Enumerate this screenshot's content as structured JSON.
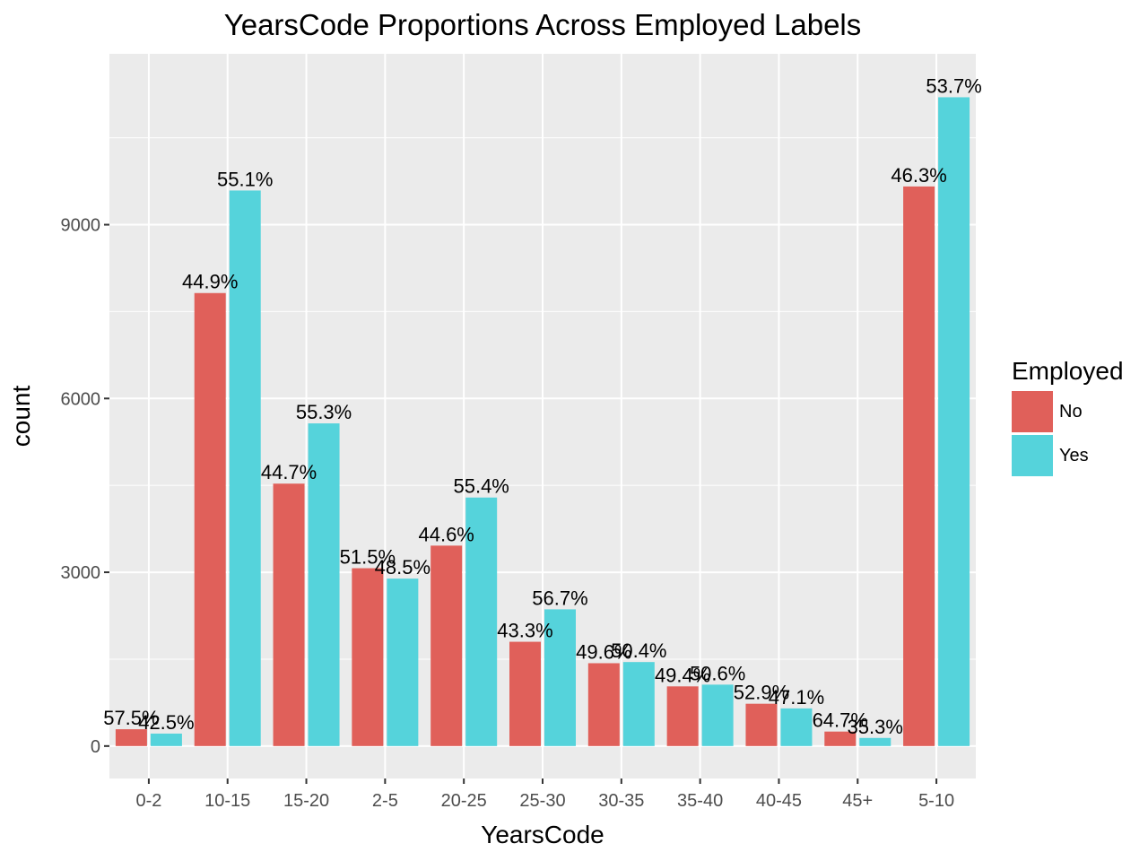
{
  "chart_data": {
    "type": "bar",
    "title": "YearsCode Proportions Across Employed Labels",
    "xlabel": "YearsCode",
    "ylabel": "count",
    "categories": [
      "0-2",
      "10-15",
      "15-20",
      "2-5",
      "20-25",
      "25-30",
      "30-35",
      "35-40",
      "40-45",
      "45+",
      "5-10"
    ],
    "ylim": [
      -560,
      11950
    ],
    "yticks": [
      0,
      3000,
      6000,
      9000
    ],
    "ytick_labels": [
      "0",
      "3000",
      "6000",
      "9000"
    ],
    "grid": true,
    "legend": {
      "title": "Employed",
      "position": "right"
    },
    "series": [
      {
        "name": "No",
        "color": "#e0605a",
        "values": [
          290,
          7820,
          4530,
          3070,
          3460,
          1800,
          1430,
          1030,
          730,
          250,
          9660
        ],
        "labels": [
          "57.5%",
          "44.9%",
          "44.7%",
          "51.5%",
          "44.6%",
          "43.3%",
          "49.6%",
          "49.4%",
          "52.9%",
          "64.7%",
          "46.3%"
        ]
      },
      {
        "name": "Yes",
        "color": "#55d3db",
        "values": [
          215,
          9590,
          5570,
          2890,
          4290,
          2360,
          1450,
          1060,
          650,
          140,
          11200
        ],
        "labels": [
          "42.5%",
          "55.1%",
          "55.3%",
          "48.5%",
          "55.4%",
          "56.7%",
          "50.4%",
          "50.6%",
          "47.1%",
          "35.3%",
          "53.7%"
        ]
      }
    ]
  }
}
